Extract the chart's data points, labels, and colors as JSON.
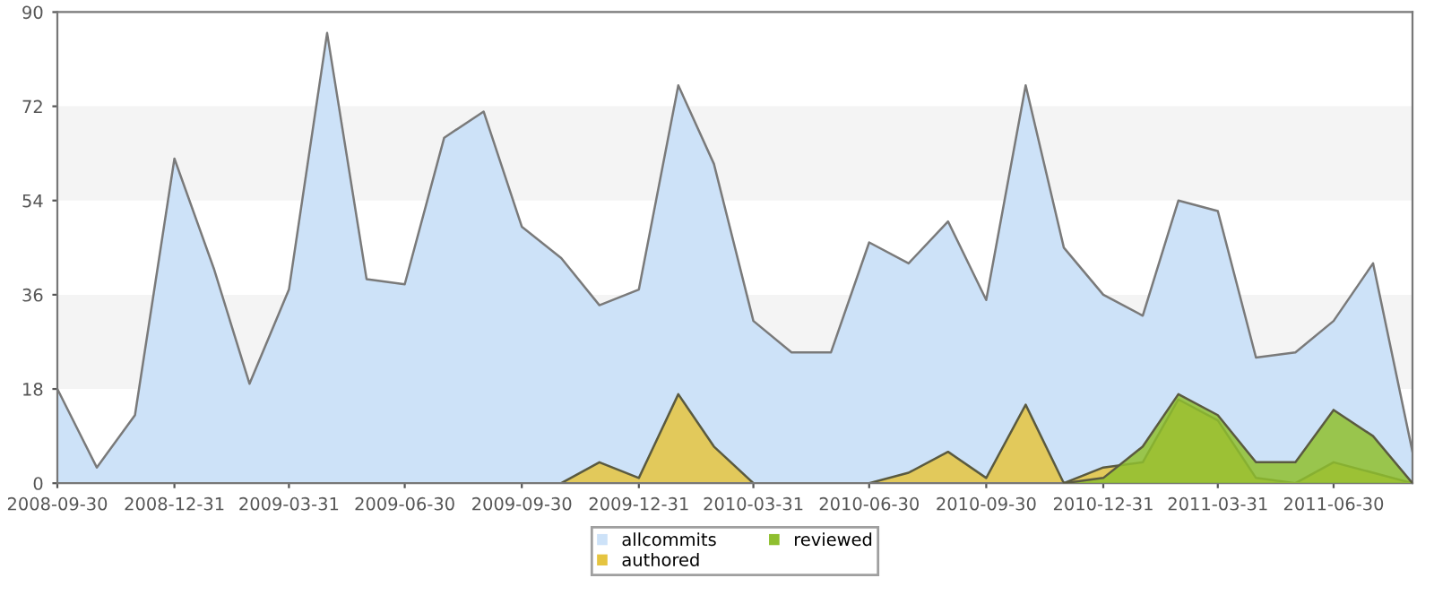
{
  "chart_data": {
    "type": "area",
    "x": [
      "2008-09-30",
      "2008-10-31",
      "2008-11-30",
      "2008-12-31",
      "2009-01-31",
      "2009-02-28",
      "2009-03-31",
      "2009-04-30",
      "2009-05-31",
      "2009-06-30",
      "2009-07-31",
      "2009-08-31",
      "2009-09-30",
      "2009-10-31",
      "2009-11-30",
      "2009-12-31",
      "2010-01-31",
      "2010-02-28",
      "2010-03-31",
      "2010-04-30",
      "2010-05-31",
      "2010-06-30",
      "2010-07-31",
      "2010-08-31",
      "2010-09-30",
      "2010-10-31",
      "2010-11-30",
      "2010-12-31",
      "2011-01-31",
      "2011-02-28",
      "2011-03-31",
      "2011-04-30",
      "2011-05-31",
      "2011-06-30",
      "2011-07-31",
      "2011-08-31"
    ],
    "series": [
      {
        "name": "allcommits",
        "color": "#cde2f8",
        "values": [
          18,
          3,
          13,
          62,
          41,
          19,
          37,
          86,
          39,
          38,
          66,
          71,
          49,
          43,
          34,
          37,
          76,
          61,
          31,
          25,
          25,
          46,
          42,
          50,
          35,
          76,
          45,
          36,
          32,
          54,
          52,
          24,
          25,
          31,
          42,
          6
        ]
      },
      {
        "name": "authored",
        "color": "#e5c440",
        "values": [
          null,
          null,
          null,
          null,
          null,
          null,
          null,
          null,
          null,
          null,
          null,
          null,
          null,
          0,
          4,
          1,
          17,
          7,
          0,
          0,
          0,
          0,
          2,
          6,
          1,
          15,
          0,
          3,
          4,
          16,
          12,
          1,
          0,
          4,
          2,
          0
        ]
      },
      {
        "name": "reviewed",
        "color": "#8fbf2f",
        "values": [
          null,
          null,
          null,
          null,
          null,
          null,
          null,
          null,
          null,
          null,
          null,
          null,
          null,
          null,
          null,
          null,
          null,
          null,
          null,
          null,
          null,
          null,
          null,
          null,
          null,
          null,
          0,
          1,
          7,
          17,
          13,
          4,
          4,
          14,
          9,
          0
        ]
      }
    ],
    "xlim": [
      "2008-09-30",
      "2011-08-31"
    ],
    "xticks": [
      "2008-09-30",
      "2008-12-31",
      "2009-03-31",
      "2009-06-30",
      "2009-09-30",
      "2009-12-31",
      "2010-03-31",
      "2010-06-30",
      "2010-09-30",
      "2010-12-31",
      "2011-03-31",
      "2011-06-30"
    ],
    "ylim": [
      0,
      90
    ],
    "yticks": [
      0,
      18,
      36,
      54,
      72,
      90
    ],
    "bands": [
      {
        "axis": "y",
        "from": 18,
        "to": 36,
        "color": "#f4f4f4"
      },
      {
        "axis": "y",
        "from": 54,
        "to": 72,
        "color": "#f4f4f4"
      }
    ],
    "grid": false,
    "legend": "bottom"
  }
}
